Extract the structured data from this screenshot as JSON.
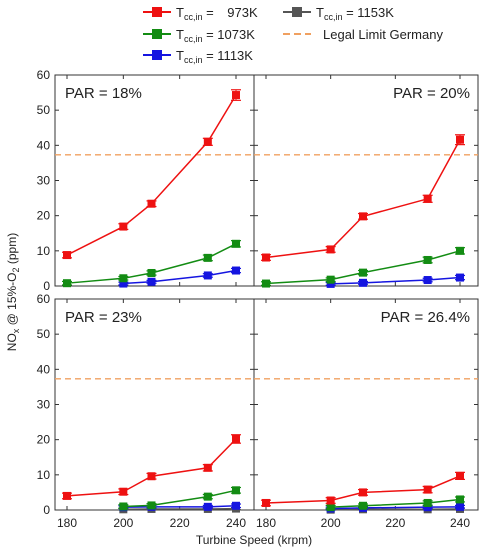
{
  "legend": {
    "entries": [
      {
        "sub": "cc,in",
        "value": "973K",
        "color": "#ee1111",
        "line": "solid"
      },
      {
        "sub": "cc,in",
        "value": "1073K",
        "color": "#138c13",
        "line": "solid"
      },
      {
        "sub": "cc,in",
        "value": "1113K",
        "color": "#1515e0",
        "line": "solid"
      },
      {
        "sub": "cc,in",
        "value": "1153K",
        "color": "#555555",
        "line": "solid"
      },
      {
        "label": "Legal Limit Germany",
        "color": "#f0a060",
        "line": "dashed"
      }
    ]
  },
  "axes": {
    "xlabel": "Turbine Speed (krpm)",
    "ylabel_parts": [
      "NO",
      "x",
      " @ 15%-O",
      "2",
      " (ppm)"
    ]
  },
  "chart_data": [
    {
      "type": "line",
      "annotation": "PAR = 18%",
      "xlim": [
        170,
        245
      ],
      "ylim": [
        0,
        60
      ],
      "xticks": [
        180,
        200,
        220,
        240
      ],
      "yticks": [
        0,
        10,
        20,
        30,
        40,
        50,
        60
      ],
      "hline": 37.3,
      "series": [
        {
          "name": "T_cc,in = 973K",
          "color": "#ee1111",
          "x": [
            180,
            200,
            210,
            230,
            240
          ],
          "y": [
            8.8,
            16.9,
            23.4,
            41.0,
            54.3
          ],
          "err": [
            0.8,
            0.8,
            0.8,
            1.0,
            1.5
          ]
        },
        {
          "name": "T_cc,in = 1073K",
          "color": "#138c13",
          "x": [
            180,
            200,
            210,
            230,
            240
          ],
          "y": [
            0.8,
            2.2,
            3.7,
            8.0,
            12.0
          ],
          "err": [
            0.5,
            0.5,
            0.6,
            0.8,
            0.9
          ]
        },
        {
          "name": "T_cc,in = 1113K",
          "color": "#1515e0",
          "x": [
            200,
            210,
            230,
            240
          ],
          "y": [
            0.7,
            1.2,
            3.0,
            4.4
          ],
          "err": [
            0.4,
            0.4,
            0.5,
            0.6
          ]
        }
      ]
    },
    {
      "type": "line",
      "annotation": "PAR = 20%",
      "xlim": [
        170,
        245
      ],
      "ylim": [
        0,
        60
      ],
      "xticks": [
        180,
        200,
        220,
        240
      ],
      "yticks": [
        0,
        10,
        20,
        30,
        40,
        50,
        60
      ],
      "hline": 37.3,
      "series": [
        {
          "name": "T_cc,in = 973K",
          "color": "#ee1111",
          "x": [
            180,
            200,
            210,
            230,
            240
          ],
          "y": [
            8.1,
            10.4,
            19.8,
            24.8,
            41.6
          ],
          "err": [
            0.8,
            0.8,
            0.8,
            1.0,
            1.4
          ]
        },
        {
          "name": "T_cc,in = 1073K",
          "color": "#138c13",
          "x": [
            180,
            200,
            210,
            230,
            240
          ],
          "y": [
            0.7,
            1.8,
            3.8,
            7.4,
            10.0
          ],
          "err": [
            0.5,
            0.5,
            0.6,
            0.8,
            0.9
          ]
        },
        {
          "name": "T_cc,in = 1113K",
          "color": "#1515e0",
          "x": [
            200,
            210,
            230,
            240
          ],
          "y": [
            0.6,
            0.9,
            1.7,
            2.4
          ],
          "err": [
            0.4,
            0.4,
            0.5,
            0.6
          ]
        }
      ]
    },
    {
      "type": "line",
      "annotation": "PAR = 23%",
      "xlim": [
        170,
        245
      ],
      "ylim": [
        0,
        60
      ],
      "xticks": [
        180,
        200,
        220,
        240
      ],
      "yticks": [
        0,
        10,
        20,
        30,
        40,
        50,
        60
      ],
      "hline": 37.3,
      "series": [
        {
          "name": "T_cc,in = 973K",
          "color": "#ee1111",
          "x": [
            180,
            200,
            210,
            230,
            240
          ],
          "y": [
            4.0,
            5.2,
            9.6,
            12.0,
            20.2
          ],
          "err": [
            0.8,
            0.8,
            0.8,
            0.9,
            1.2
          ]
        },
        {
          "name": "T_cc,in = 1073K",
          "color": "#138c13",
          "x": [
            200,
            210,
            230,
            240
          ],
          "y": [
            1.0,
            1.3,
            3.8,
            5.6
          ],
          "err": [
            0.5,
            0.5,
            0.6,
            0.8
          ]
        },
        {
          "name": "T_cc,in = 1113K",
          "color": "#1515e0",
          "x": [
            200,
            210,
            230,
            240
          ],
          "y": [
            0.8,
            0.9,
            0.9,
            1.2
          ],
          "err": [
            0.4,
            0.4,
            0.4,
            0.5
          ]
        },
        {
          "name": "T_cc,in = 1153K",
          "color": "#555555",
          "x": [
            200,
            210,
            230,
            240
          ],
          "y": [
            0.2,
            0.3,
            0.3,
            0.4
          ],
          "err": [
            0.3,
            0.3,
            0.3,
            0.3
          ]
        }
      ]
    },
    {
      "type": "line",
      "annotation": "PAR = 26.4%",
      "xlim": [
        170,
        245
      ],
      "ylim": [
        0,
        60
      ],
      "xticks": [
        180,
        200,
        220,
        240
      ],
      "yticks": [
        0,
        10,
        20,
        30,
        40,
        50,
        60
      ],
      "hline": 37.3,
      "series": [
        {
          "name": "T_cc,in = 973K",
          "color": "#ee1111",
          "x": [
            180,
            200,
            210,
            230,
            240
          ],
          "y": [
            2.0,
            2.7,
            5.0,
            5.8,
            9.7
          ],
          "err": [
            0.8,
            0.8,
            0.8,
            0.9,
            1.0
          ]
        },
        {
          "name": "T_cc,in = 1073K",
          "color": "#138c13",
          "x": [
            200,
            210,
            230,
            240
          ],
          "y": [
            0.8,
            1.2,
            2.0,
            3.0
          ],
          "err": [
            0.5,
            0.5,
            0.6,
            0.7
          ]
        },
        {
          "name": "T_cc,in = 1113K",
          "color": "#1515e0",
          "x": [
            200,
            210,
            230,
            240
          ],
          "y": [
            0.4,
            0.6,
            0.8,
            0.9
          ],
          "err": [
            0.4,
            0.4,
            0.4,
            0.4
          ]
        },
        {
          "name": "T_cc,in = 1153K",
          "color": "#555555",
          "x": [
            200,
            210,
            230,
            240
          ],
          "y": [
            0.1,
            0.2,
            0.2,
            0.3
          ],
          "err": [
            0.3,
            0.3,
            0.3,
            0.3
          ]
        }
      ]
    }
  ]
}
